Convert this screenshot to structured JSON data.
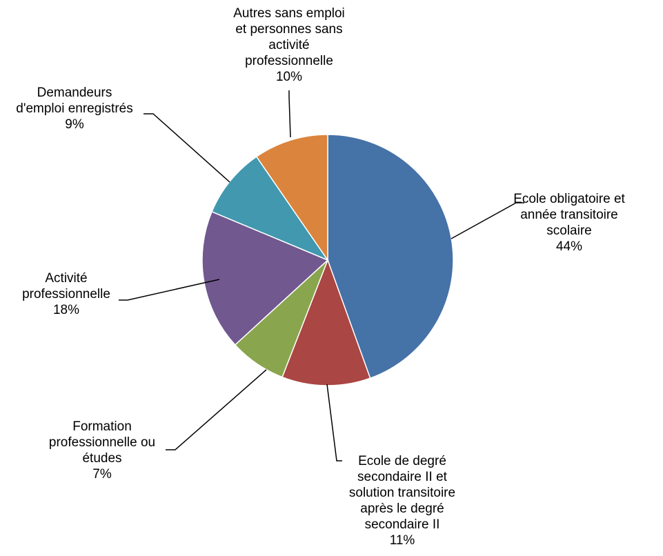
{
  "chart_data": {
    "type": "pie",
    "title": "",
    "start_angle_deg": 0,
    "direction": "clockwise",
    "slices": [
      {
        "label_lines": [
          "Ecole obligatoire et",
          "année transitoire",
          "scolaire"
        ],
        "percent_label": "44%",
        "value": 44.5,
        "color": "#4572A7"
      },
      {
        "label_lines": [
          "Ecole de degré",
          "secondaire II et",
          "solution transitoire",
          "après le degré",
          "secondaire II"
        ],
        "percent_label": "11%",
        "value": 11.4,
        "color": "#AA4643"
      },
      {
        "label_lines": [
          "Formation",
          "professionnelle ou",
          "études"
        ],
        "percent_label": "7%",
        "value": 7.3,
        "color": "#89A54E"
      },
      {
        "label_lines": [
          "Activité",
          "professionnelle"
        ],
        "percent_label": "18%",
        "value": 18.1,
        "color": "#71588F"
      },
      {
        "label_lines": [
          "Demandeurs",
          "d'emploi enregistrés"
        ],
        "percent_label": "9%",
        "value": 9.1,
        "color": "#4198AF"
      },
      {
        "label_lines": [
          "Autres sans emploi",
          "et personnes sans",
          "activité",
          "professionnelle"
        ],
        "percent_label": "10%",
        "value": 9.6,
        "color": "#DB843D"
      }
    ]
  }
}
